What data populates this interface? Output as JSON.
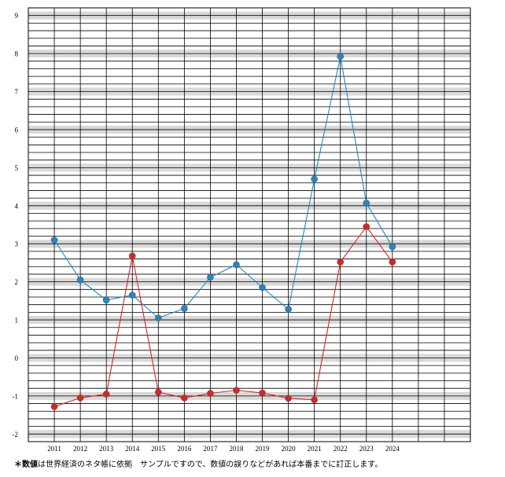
{
  "chart_data": {
    "type": "line",
    "title": "",
    "xlabel": "",
    "ylabel": "",
    "categories": [
      "2011",
      "2012",
      "2013",
      "2014",
      "2015",
      "2016",
      "2017",
      "2018",
      "2019",
      "2020",
      "2021",
      "2022",
      "2023",
      "2024"
    ],
    "ylim": [
      -2.2,
      9.2
    ],
    "yticks": [
      "9",
      "8",
      "7",
      "6",
      "5",
      "4",
      "3",
      "2",
      "1",
      "0",
      "-1",
      "-2"
    ],
    "ytick_values": [
      9,
      8,
      7,
      6,
      5,
      4,
      3,
      2,
      1,
      0,
      -1,
      -2
    ],
    "grid": true,
    "legend": "none",
    "series": [
      {
        "color": "#1e88c8",
        "values": [
          3.1,
          2.05,
          1.52,
          1.65,
          1.05,
          1.3,
          2.12,
          2.45,
          1.85,
          1.28,
          4.7,
          7.92,
          4.07,
          2.92
        ]
      },
      {
        "color": "#e02020",
        "values": [
          -1.28,
          -1.05,
          -0.95,
          2.68,
          -0.9,
          -1.05,
          -0.93,
          -0.85,
          -0.92,
          -1.06,
          -1.1,
          2.52,
          3.45,
          2.52
        ]
      }
    ],
    "band_color": "#d9d9d9",
    "grid_color": "#000000"
  },
  "footnote": {
    "star": "＊",
    "bold_text": "数値",
    "rest": "は世界経済のネタ帳に依拠　サンプルですので、数値の誤りなどがあれば本番までに訂正します。"
  }
}
